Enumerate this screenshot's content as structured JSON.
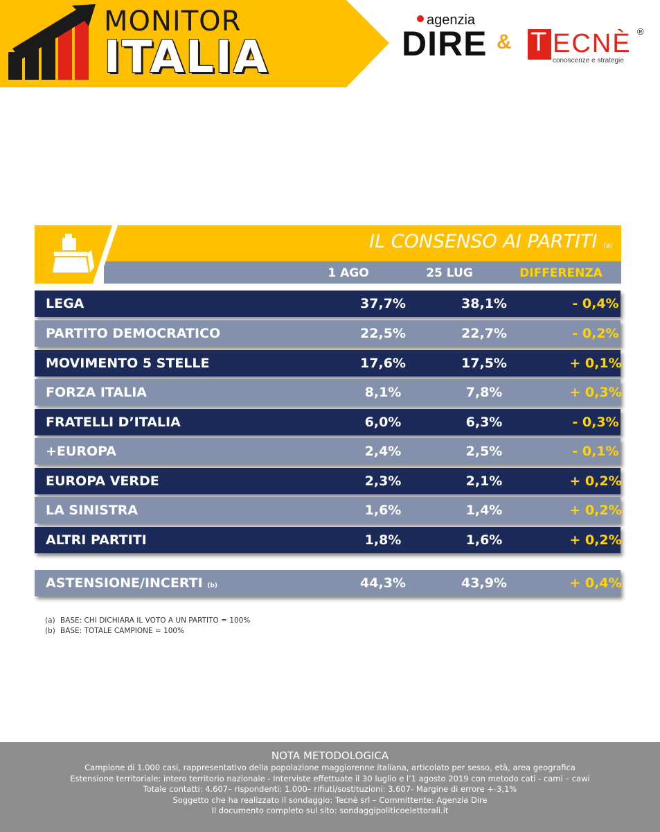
{
  "header": {
    "brand_line1": "MONITOR",
    "brand_line2": "ITALIA",
    "partner1_small": "agenzia",
    "partner1": "DIRE",
    "ampersand": "&",
    "partner2_initial": "T",
    "partner2_rest": "ECNÈ",
    "partner2_registered": "®",
    "partner2_tagline": "conoscenze e strategie"
  },
  "colors": {
    "accent_yellow": "#ffc000",
    "row_dark": "#1b2a58",
    "row_light": "#8491ad",
    "diff_text": "#ffd400",
    "footer_gray": "#8e8e8e",
    "brand_red": "#e2231a"
  },
  "icons": {
    "header_icon": "ballot-box-icon",
    "brand_icon": "rising-bars-arrow-icon"
  },
  "chart_data": {
    "type": "table",
    "title": "IL CONSENSO AI PARTITI",
    "title_note": "(a)",
    "columns": [
      "1 AGO",
      "25 LUG",
      "DIFFERENZA"
    ],
    "rows": [
      {
        "party": "LEGA",
        "ago": "37,7%",
        "lug": "38,1%",
        "diff": "- 0,4%"
      },
      {
        "party": "PARTITO DEMOCRATICO",
        "ago": "22,5%",
        "lug": "22,7%",
        "diff": "- 0,2%"
      },
      {
        "party": "MOVIMENTO 5 STELLE",
        "ago": "17,6%",
        "lug": "17,5%",
        "diff": "+ 0,1%"
      },
      {
        "party": "FORZA ITALIA",
        "ago": "8,1%",
        "lug": "7,8%",
        "diff": "+ 0,3%"
      },
      {
        "party": "FRATELLI D’ITALIA",
        "ago": "6,0%",
        "lug": "6,3%",
        "diff": "- 0,3%"
      },
      {
        "party": "+EUROPA",
        "ago": "2,4%",
        "lug": "2,5%",
        "diff": "- 0,1%"
      },
      {
        "party": "EUROPA VERDE",
        "ago": "2,3%",
        "lug": "2,1%",
        "diff": "+ 0,2%"
      },
      {
        "party": "LA SINISTRA",
        "ago": "1,6%",
        "lug": "1,4%",
        "diff": "+ 0,2%"
      },
      {
        "party": "ALTRI PARTITI",
        "ago": "1,8%",
        "lug": "1,6%",
        "diff": "+ 0,2%"
      }
    ],
    "abstention": {
      "label": "ASTENSIONE/INCERTI",
      "note": "(b)",
      "ago": "44,3%",
      "lug": "43,9%",
      "diff": "+ 0,4%"
    }
  },
  "footnotes": [
    {
      "key": "(a)",
      "text": "BASE: CHI DICHIARA IL VOTO A UN PARTITO = 100%"
    },
    {
      "key": "(b)",
      "text": "BASE: TOTALE CAMPIONE = 100%"
    }
  ],
  "nota": {
    "title": "NOTA METODOLOGICA",
    "lines": [
      "Campione di 1.000 casi, rappresentativo della popolazione maggiorenne italiana, articolato per sesso, età, area geografica",
      "Estensione territoriale: intero territorio nazionale  - Interviste effettuate il 30 luglio e l’1 agosto 2019 con metodo cati - cami – cawi",
      "Totale contatti: 4.607– rispondenti:  1.000– rifiuti/sostituzioni: 3.607- Margine di errore +-3,1%",
      "Soggetto che ha realizzato il sondaggio: Tecnè srl – Committente: Agenzia Dire",
      "Il documento completo sul sito: sondaggipoliticoelettorali.it"
    ]
  }
}
